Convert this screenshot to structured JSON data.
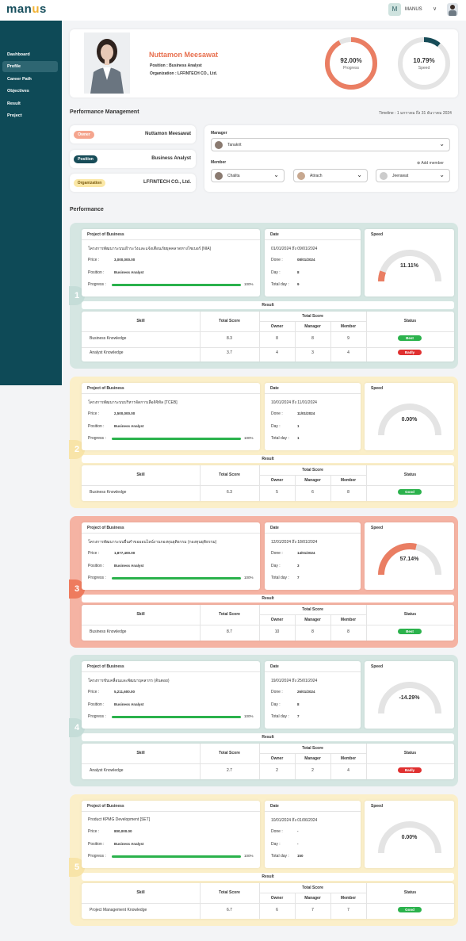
{
  "app": {
    "logo_main": "man",
    "logo_u": "u",
    "logo_end": "s",
    "avatar_letter": "M",
    "user": "MANUS"
  },
  "nav": [
    "Dashboard",
    "Profile",
    "Career Path",
    "Objectives",
    "Result",
    "Project"
  ],
  "profile": {
    "name": "Nuttamon Meesawat",
    "position_label": "Position :",
    "position": "Business Analyst",
    "org_label": "Organization :",
    "org": "LFFINTECH CO., Ltd.",
    "progress_value": "92.00%",
    "progress_label": "Progress",
    "progress": 0.92,
    "speed_value": "10.79%",
    "speed_label": "Speed",
    "speed": 0.1079
  },
  "pm": {
    "title": "Performance Management",
    "timeline": "Timeline : 1 มกราคม ถึง 31 ธันวาคม 2024",
    "owner_label": "Owner",
    "owner": "Nuttamon Meesawat",
    "position_label": "Position",
    "position": "Business Analyst",
    "org_label": "Organization",
    "org": "LFFINTECH CO., Ltd.",
    "manager_label": "Manager",
    "manager": "Tanakrit",
    "member_label": "Member",
    "add_member": "Add member",
    "members": [
      "Chalita",
      "Atirach",
      "Jeerawat"
    ]
  },
  "perf_title": "Performance",
  "labels": {
    "project": "Project of Business",
    "date": "Date",
    "speed": "Speed",
    "price": "Price :",
    "position": "Position :",
    "progress": "Progress :",
    "done": "Done :",
    "day": "Day :",
    "total_day": "Total day :",
    "result": "Result",
    "skill": "Skill",
    "total_score": "Total Score",
    "owner": "Owner",
    "manager": "Manager",
    "member": "Member",
    "status": "Status"
  },
  "projects": [
    {
      "num": "1",
      "name": "โครงการพัฒนาระบบเฝ้าระวังและแจ้งเตือนภัยยุคคลาดทางไซเบอร์ [NIA]",
      "price": "3,000,000.00",
      "position": "Business Analyst",
      "progress": "100%",
      "progress_value": 1,
      "date_range": "01/01/2024 ถึง 09/01/2024",
      "done": "08/01/2024",
      "day": "8",
      "total_day": "9",
      "speed": "11.11%",
      "speed_value": 0.1111,
      "color": "#d5e6e2",
      "num_color": "#c5ddd8",
      "skills": [
        {
          "skill": "Business Knowledge",
          "total": "8.3",
          "owner": "8",
          "manager": "8",
          "member": "9",
          "status": "Best",
          "status_color": "#2bb24c"
        },
        {
          "skill": "Analyst Knowledge",
          "total": "3.7",
          "owner": "4",
          "manager": "3",
          "member": "4",
          "status": "Badly",
          "status_color": "#e03030"
        }
      ]
    },
    {
      "num": "2",
      "name": "โครงการพัฒนาระบบบริหารจัดการเลือดิจิทัล [TCEB]",
      "price": "2,500,000.00",
      "position": "Business Analyst",
      "progress": "100%",
      "progress_value": 1,
      "date_range": "10/01/2024 ถึง 11/01/2024",
      "done": "11/01/2024",
      "day": "1",
      "total_day": "1",
      "speed": "0.00%",
      "speed_value": 0,
      "color": "#fbefc9",
      "num_color": "#f8e4a8",
      "skills": [
        {
          "skill": "Business Knowledge",
          "total": "6.3",
          "owner": "5",
          "manager": "6",
          "member": "8",
          "status": "Good",
          "status_color": "#2bb24c"
        }
      ]
    },
    {
      "num": "3",
      "name": "โครงการพัฒนาระบบยื่นคำขอออนไลน์งานกองทุนยุติธรรม (กองทุนยุติธรรม)",
      "price": "1,877,400.00",
      "position": "Business Analyst",
      "progress": "100%",
      "progress_value": 1,
      "date_range": "12/01/2024 ถึง 18/01/2024",
      "done": "14/01/2024",
      "day": "3",
      "total_day": "7",
      "speed": "57.14%",
      "speed_value": 0.5714,
      "color": "#f5b3a3",
      "num_color": "#ee7b5e",
      "skills": [
        {
          "skill": "Business Knowledge",
          "total": "8.7",
          "owner": "10",
          "manager": "8",
          "member": "8",
          "status": "Best",
          "status_color": "#2bb24c"
        }
      ]
    },
    {
      "num": "4",
      "name": "โครงการขับเคลื่อนและพัฒนาบุคลากร (ต้นตอย)",
      "price": "5,211,600.00",
      "position": "Business Analyst",
      "progress": "100%",
      "progress_value": 1,
      "date_range": "19/01/2024 ถึง 25/01/2024",
      "done": "26/01/2024",
      "day": "8",
      "total_day": "7",
      "speed": "-14.29%",
      "speed_value": 0,
      "color": "#d5e6e2",
      "num_color": "#c5ddd8",
      "skills": [
        {
          "skill": "Analyst Knowledge",
          "total": "2.7",
          "owner": "2",
          "manager": "2",
          "member": "4",
          "status": "Badly",
          "status_color": "#e03030"
        }
      ]
    },
    {
      "num": "5",
      "name": "Product KPMG Development [SET]",
      "price": "800,000.00",
      "position": "Business Analyst",
      "progress": "100%",
      "progress_value": 1,
      "date_range": "10/01/2024 ถึง 01/06/2024",
      "done": "-",
      "day": "-",
      "total_day": "150",
      "speed": "0.00%",
      "speed_value": 0,
      "color": "#fbefc9",
      "num_color": "#f8e4a8",
      "skills": [
        {
          "skill": "Project Management Knowledge",
          "total": "6.7",
          "owner": "6",
          "manager": "7",
          "member": "7",
          "status": "Good",
          "status_color": "#2bb24c"
        }
      ]
    }
  ]
}
